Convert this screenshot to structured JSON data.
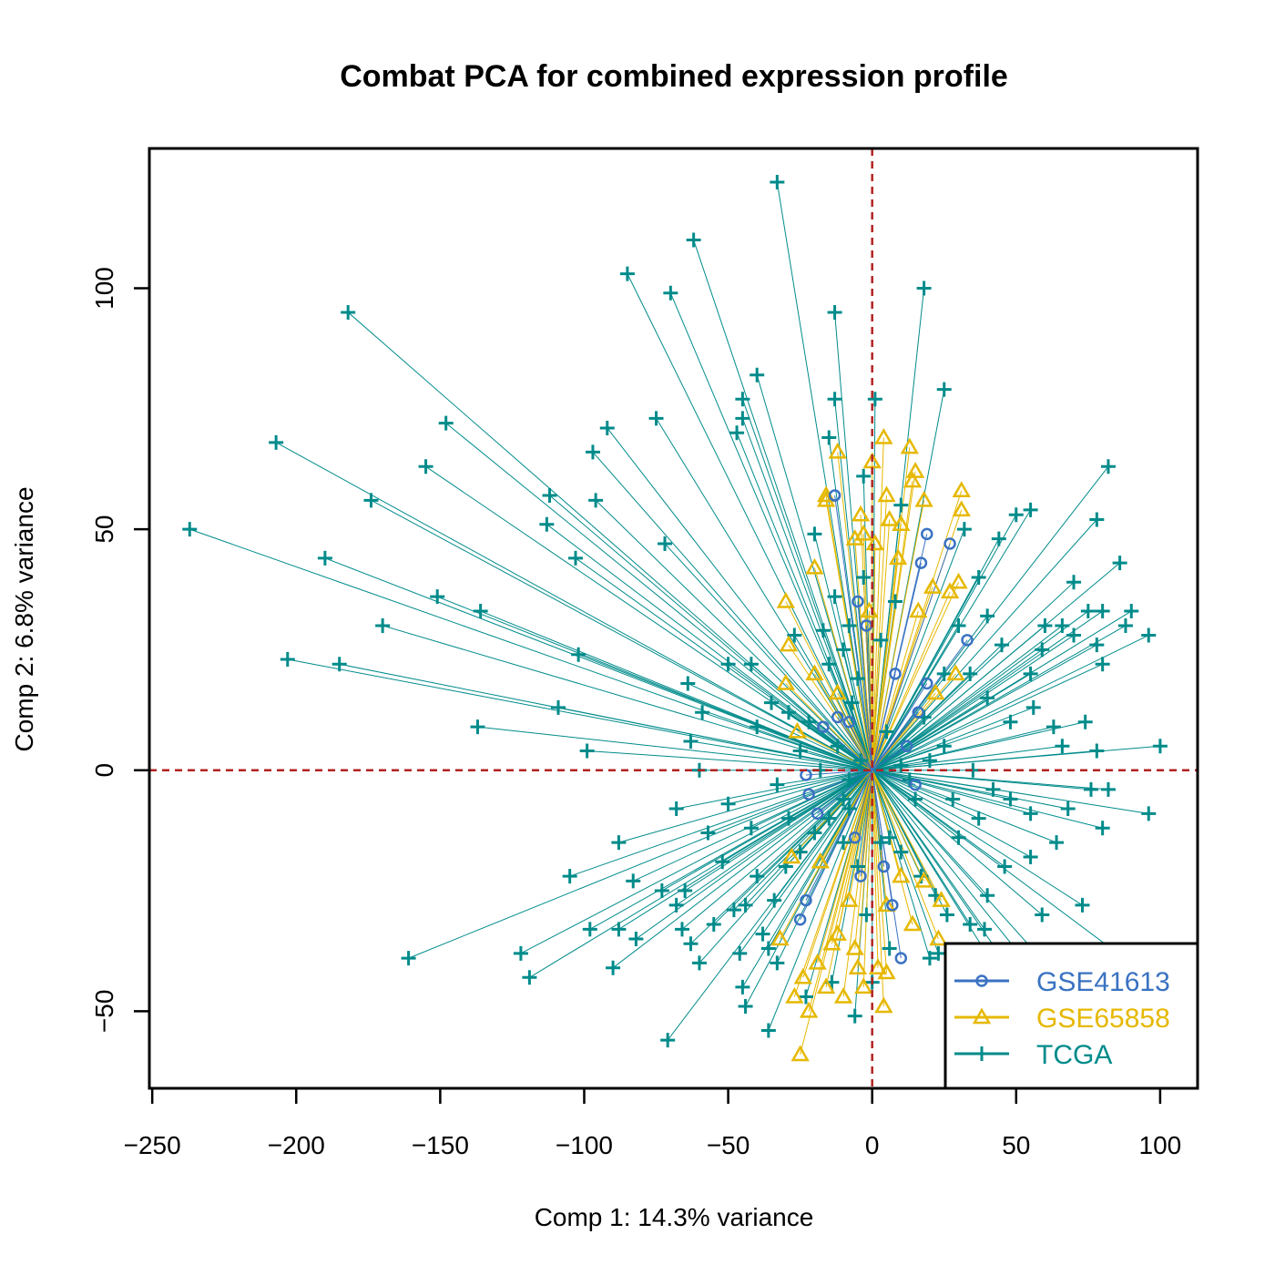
{
  "chart_data": {
    "type": "scatter",
    "title": "Combat PCA for combined expression profile",
    "xlabel": "Comp 1: 14.3% variance",
    "ylabel": "Comp 2: 6.8% variance",
    "xlim": [
      -251,
      113
    ],
    "ylim": [
      -66,
      129
    ],
    "x_ticks": [
      -250,
      -200,
      -150,
      -100,
      -50,
      0,
      50,
      100
    ],
    "x_tick_labels": [
      "−250",
      "−200",
      "−150",
      "−100",
      "−50",
      "0",
      "50",
      "100"
    ],
    "y_ticks": [
      -50,
      0,
      50,
      100
    ],
    "y_tick_labels": [
      "−50",
      "0",
      "50",
      "100"
    ],
    "reference_lines": {
      "x": 0,
      "y": 0,
      "color": "#b22222",
      "style": "dashed"
    },
    "center": [
      0,
      0
    ],
    "legend": {
      "position": "bottom-right"
    },
    "series": [
      {
        "name": "GSE41613",
        "color": "#3a72c2",
        "marker": "circle",
        "points": [
          [
            -13,
            57
          ],
          [
            -5,
            35
          ],
          [
            19,
            49
          ],
          [
            27,
            47
          ],
          [
            17,
            43
          ],
          [
            33,
            27
          ],
          [
            19,
            18
          ],
          [
            16,
            12
          ],
          [
            -17,
            9
          ],
          [
            -12,
            11
          ],
          [
            -8,
            10
          ],
          [
            -23,
            -1
          ],
          [
            -22,
            -5
          ],
          [
            -19,
            -9
          ],
          [
            -25,
            -31
          ],
          [
            -23,
            -27
          ],
          [
            7,
            -28
          ],
          [
            10,
            -39
          ],
          [
            4,
            -20
          ],
          [
            15,
            -3
          ],
          [
            12,
            5
          ],
          [
            -6,
            -14
          ],
          [
            -4,
            -22
          ],
          [
            -2,
            30
          ],
          [
            8,
            20
          ]
        ]
      },
      {
        "name": "GSE65858",
        "color": "#e6b800",
        "marker": "triangle",
        "points": [
          [
            4,
            69
          ],
          [
            -12,
            66
          ],
          [
            13,
            67
          ],
          [
            0,
            64
          ],
          [
            15,
            62
          ],
          [
            14,
            60
          ],
          [
            31,
            58
          ],
          [
            -16,
            57
          ],
          [
            5,
            57
          ],
          [
            18,
            56
          ],
          [
            -16,
            56
          ],
          [
            -4,
            53
          ],
          [
            31,
            54
          ],
          [
            6,
            52
          ],
          [
            10,
            51
          ],
          [
            -3,
            49
          ],
          [
            -6,
            48
          ],
          [
            1,
            47
          ],
          [
            -20,
            42
          ],
          [
            -30,
            35
          ],
          [
            9,
            44
          ],
          [
            30,
            39
          ],
          [
            21,
            38
          ],
          [
            27,
            37
          ],
          [
            -1,
            33
          ],
          [
            16,
            33
          ],
          [
            -29,
            26
          ],
          [
            -20,
            20
          ],
          [
            -12,
            16
          ],
          [
            -30,
            18
          ],
          [
            -26,
            8
          ],
          [
            22,
            16
          ],
          [
            29,
            20
          ],
          [
            -28,
            -18
          ],
          [
            -18,
            -19
          ],
          [
            -32,
            -35
          ],
          [
            -24,
            -43
          ],
          [
            -27,
            -47
          ],
          [
            -22,
            -50
          ],
          [
            -10,
            -47
          ],
          [
            -16,
            -45
          ],
          [
            -5,
            -41
          ],
          [
            -3,
            -45
          ],
          [
            4,
            -49
          ],
          [
            -25,
            -59
          ],
          [
            -12,
            -34
          ],
          [
            -8,
            -27
          ],
          [
            5,
            -28
          ],
          [
            14,
            -32
          ],
          [
            23,
            -35
          ],
          [
            18,
            -23
          ],
          [
            24,
            -27
          ],
          [
            10,
            -22
          ],
          [
            -6,
            -37
          ],
          [
            2,
            -41
          ],
          [
            5,
            -42
          ],
          [
            -19,
            -40
          ],
          [
            -14,
            -36
          ]
        ]
      },
      {
        "name": "TCGA",
        "color": "#008b8b",
        "marker": "plus",
        "points": [
          [
            -33,
            122
          ],
          [
            -62,
            110
          ],
          [
            -85,
            103
          ],
          [
            -70,
            99
          ],
          [
            -182,
            95
          ],
          [
            18,
            100
          ],
          [
            -13,
            95
          ],
          [
            -40,
            82
          ],
          [
            -45,
            77
          ],
          [
            -13,
            77
          ],
          [
            1,
            77
          ],
          [
            25,
            79
          ],
          [
            -148,
            72
          ],
          [
            -207,
            68
          ],
          [
            -92,
            71
          ],
          [
            -75,
            73
          ],
          [
            -45,
            73
          ],
          [
            -47,
            70
          ],
          [
            -15,
            69
          ],
          [
            -155,
            63
          ],
          [
            -97,
            66
          ],
          [
            -174,
            56
          ],
          [
            -112,
            57
          ],
          [
            -96,
            56
          ],
          [
            -113,
            51
          ],
          [
            -237,
            50
          ],
          [
            -103,
            44
          ],
          [
            -72,
            47
          ],
          [
            -190,
            44
          ],
          [
            -151,
            36
          ],
          [
            -136,
            33
          ],
          [
            -170,
            30
          ],
          [
            -203,
            23
          ],
          [
            -185,
            22
          ],
          [
            -102,
            24
          ],
          [
            -42,
            22
          ],
          [
            -50,
            22
          ],
          [
            -64,
            18
          ],
          [
            -59,
            12
          ],
          [
            -109,
            13
          ],
          [
            -137,
            9
          ],
          [
            -99,
            4
          ],
          [
            -63,
            6
          ],
          [
            -60,
            0
          ],
          [
            -68,
            -8
          ],
          [
            -40,
            9
          ],
          [
            -105,
            -22
          ],
          [
            -88,
            -15
          ],
          [
            -83,
            -23
          ],
          [
            -73,
            -25
          ],
          [
            -98,
            -33
          ],
          [
            -88,
            -33
          ],
          [
            -82,
            -35
          ],
          [
            -90,
            -41
          ],
          [
            -68,
            -28
          ],
          [
            -65,
            -25
          ],
          [
            -66,
            -33
          ],
          [
            -63,
            -36
          ],
          [
            -60,
            -40
          ],
          [
            -55,
            -32
          ],
          [
            -48,
            -29
          ],
          [
            -44,
            -28
          ],
          [
            -46,
            -38
          ],
          [
            -44,
            -49
          ],
          [
            -45,
            -45
          ],
          [
            -38,
            -34
          ],
          [
            -36,
            -37
          ],
          [
            -161,
            -39
          ],
          [
            -122,
            -38
          ],
          [
            -119,
            -43
          ],
          [
            -71,
            -56
          ],
          [
            -36,
            -54
          ],
          [
            -23,
            -47
          ],
          [
            -14,
            -44
          ],
          [
            -6,
            -51
          ],
          [
            0,
            -44
          ],
          [
            6,
            -37
          ],
          [
            20,
            -39
          ],
          [
            23,
            -38
          ],
          [
            39,
            -33
          ],
          [
            44,
            -38
          ],
          [
            48,
            -46
          ],
          [
            55,
            -41
          ],
          [
            60,
            -40
          ],
          [
            59,
            -30
          ],
          [
            73,
            -28
          ],
          [
            92,
            -41
          ],
          [
            96,
            -9
          ],
          [
            100,
            5
          ],
          [
            96,
            28
          ],
          [
            82,
            63
          ],
          [
            86,
            43
          ],
          [
            78,
            52
          ],
          [
            70,
            39
          ],
          [
            55,
            54
          ],
          [
            50,
            53
          ],
          [
            44,
            48
          ],
          [
            32,
            50
          ],
          [
            10,
            55
          ],
          [
            75,
            33
          ],
          [
            80,
            33
          ],
          [
            90,
            33
          ],
          [
            88,
            30
          ],
          [
            78,
            26
          ],
          [
            80,
            22
          ],
          [
            70,
            28
          ],
          [
            66,
            30
          ],
          [
            60,
            30
          ],
          [
            59,
            25
          ],
          [
            55,
            20
          ],
          [
            45,
            26
          ],
          [
            40,
            32
          ],
          [
            37,
            40
          ],
          [
            30,
            30
          ],
          [
            25,
            20
          ],
          [
            34,
            20
          ],
          [
            40,
            15
          ],
          [
            48,
            10
          ],
          [
            56,
            13
          ],
          [
            63,
            9
          ],
          [
            66,
            5
          ],
          [
            74,
            10
          ],
          [
            78,
            4
          ],
          [
            82,
            -4
          ],
          [
            80,
            -12
          ],
          [
            76,
            -4
          ],
          [
            68,
            -8
          ],
          [
            64,
            -15
          ],
          [
            55,
            -18
          ],
          [
            46,
            -20
          ],
          [
            40,
            -26
          ],
          [
            34,
            -32
          ],
          [
            26,
            -30
          ],
          [
            22,
            -26
          ],
          [
            17,
            -22
          ],
          [
            10,
            -17
          ],
          [
            6,
            -14
          ],
          [
            28,
            -6
          ],
          [
            37,
            -10
          ],
          [
            48,
            -6
          ],
          [
            55,
            -9
          ],
          [
            42,
            -4
          ],
          [
            35,
            0
          ],
          [
            25,
            5
          ],
          [
            10,
            1
          ],
          [
            15,
            -6
          ],
          [
            -4,
            2
          ],
          [
            -10,
            -6
          ],
          [
            -15,
            -10
          ],
          [
            -20,
            -13
          ],
          [
            -25,
            -17
          ],
          [
            -30,
            -20
          ],
          [
            -34,
            -27
          ],
          [
            -10,
            -15
          ],
          [
            -5,
            -20
          ],
          [
            -2,
            -30
          ],
          [
            3,
            -15
          ],
          [
            -8,
            -8
          ],
          [
            5,
            8
          ],
          [
            -7,
            14
          ],
          [
            -15,
            22
          ],
          [
            -27,
            28
          ],
          [
            -17,
            29
          ],
          [
            -10,
            25
          ],
          [
            -5,
            19
          ],
          [
            3,
            27
          ],
          [
            8,
            35
          ],
          [
            -20,
            49
          ],
          [
            -13,
            36
          ],
          [
            -3,
            40
          ],
          [
            -8,
            30
          ],
          [
            -35,
            14
          ],
          [
            -29,
            12
          ],
          [
            -22,
            10
          ],
          [
            -50,
            -7
          ],
          [
            -42,
            -12
          ],
          [
            -52,
            -19
          ],
          [
            -57,
            -13
          ],
          [
            -33,
            -3
          ],
          [
            -25,
            4
          ],
          [
            -18,
            0
          ],
          [
            -12,
            5
          ],
          [
            -8,
            -2
          ],
          [
            -40,
            -22
          ],
          [
            -33,
            -40
          ],
          [
            -29,
            -10
          ],
          [
            13,
            -2
          ],
          [
            20,
            2
          ],
          [
            18,
            11
          ],
          [
            30,
            -14
          ],
          [
            -3,
            61
          ]
        ]
      }
    ]
  }
}
